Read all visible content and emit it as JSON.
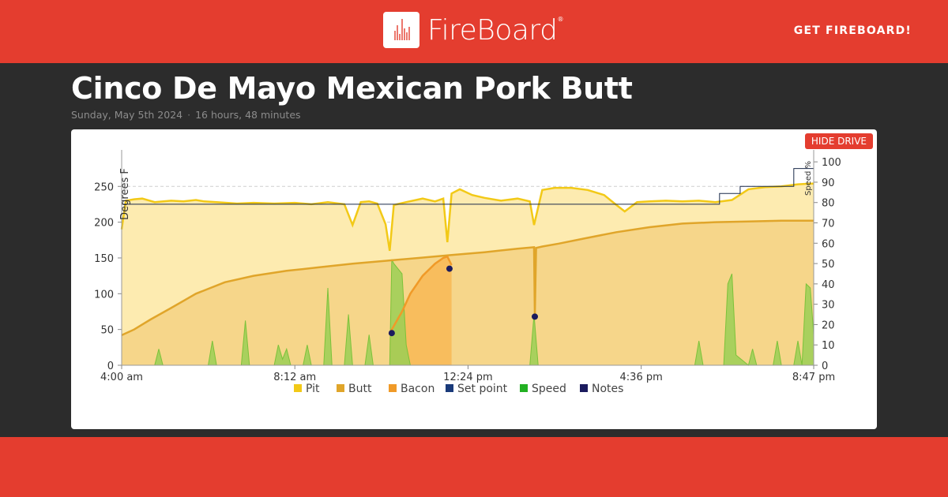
{
  "header": {
    "brand": "FireBoard",
    "reg_mark": "®",
    "cta_label": "GET FIREBOARD!"
  },
  "cook": {
    "title": "Cinco De Mayo Mexican Pork Butt",
    "date": "Sunday, May 5th 2024",
    "duration": "16 hours, 48 minutes"
  },
  "controls": {
    "hide_drive_label": "HIDE DRIVE"
  },
  "colors": {
    "brand_red": "#e43d2f",
    "pit": "#f2c917",
    "butt": "#e0a52a",
    "bacon": "#f09a28",
    "setpoint": "#1a3a7a",
    "speed": "#22b022",
    "notes": "#1b1b5e"
  },
  "chart_data": {
    "type": "line",
    "ylabel": "Degrees F",
    "y2label": "Speed %",
    "ylim": [
      0,
      290
    ],
    "y2lim": [
      0,
      102
    ],
    "y_ticks": [
      0,
      50,
      100,
      150,
      200,
      250
    ],
    "y2_ticks": [
      0,
      10,
      20,
      30,
      40,
      50,
      60,
      70,
      80,
      90,
      100
    ],
    "x_range_hours": [
      4.0,
      20.783
    ],
    "x_tick_labels": [
      {
        "h": 4.0,
        "label": "4:00 am"
      },
      {
        "h": 8.2,
        "label": "8:12 am"
      },
      {
        "h": 12.4,
        "label": "12:24 pm"
      },
      {
        "h": 16.6,
        "label": "4:36 pm"
      },
      {
        "h": 20.783,
        "label": "8:47 pm"
      }
    ],
    "grid": true,
    "legend": [
      {
        "name": "Pit",
        "color_key": "pit"
      },
      {
        "name": "Butt",
        "color_key": "butt"
      },
      {
        "name": "Bacon",
        "color_key": "bacon"
      },
      {
        "name": "Set point",
        "color_key": "setpoint"
      },
      {
        "name": "Speed",
        "color_key": "speed"
      },
      {
        "name": "Notes",
        "color_key": "notes"
      }
    ],
    "series": [
      {
        "name": "Pit",
        "axis": "left",
        "x": [
          4.0,
          4.1,
          4.3,
          4.5,
          4.8,
          5.2,
          5.5,
          5.8,
          6.0,
          6.3,
          6.8,
          7.2,
          7.7,
          8.2,
          8.6,
          9.0,
          9.4,
          9.6,
          9.8,
          10.0,
          10.2,
          10.4,
          10.5,
          10.6,
          10.9,
          11.3,
          11.6,
          11.8,
          11.9,
          12.0,
          12.2,
          12.5,
          12.8,
          13.2,
          13.6,
          13.9,
          14.0,
          14.2,
          14.5,
          14.9,
          15.3,
          15.7,
          16.0,
          16.2,
          16.5,
          16.8,
          17.2,
          17.6,
          18.0,
          18.4,
          18.8,
          19.2,
          19.6,
          20.0,
          20.4,
          20.783
        ],
        "y": [
          190,
          230,
          232,
          233,
          228,
          230,
          229,
          231,
          229,
          228,
          226,
          227,
          226,
          227,
          225,
          228,
          225,
          196,
          228,
          229,
          226,
          197,
          160,
          224,
          228,
          233,
          229,
          233,
          172,
          240,
          246,
          238,
          234,
          230,
          233,
          229,
          196,
          245,
          248,
          248,
          245,
          238,
          224,
          215,
          228,
          229,
          230,
          229,
          230,
          228,
          231,
          246,
          249,
          250,
          253,
          254
        ]
      },
      {
        "name": "Butt",
        "axis": "left",
        "x": [
          4.0,
          4.3,
          4.7,
          5.2,
          5.8,
          6.5,
          7.2,
          8.0,
          8.8,
          9.6,
          10.4,
          11.2,
          12.0,
          12.8,
          13.6,
          14.0,
          14.02,
          14.05,
          14.2,
          14.6,
          15.2,
          16.0,
          16.8,
          17.6,
          18.4,
          19.2,
          20.0,
          20.783
        ],
        "y": [
          42,
          50,
          64,
          80,
          100,
          116,
          125,
          132,
          137,
          142,
          146,
          150,
          154,
          158,
          163,
          165,
          70,
          164,
          166,
          170,
          177,
          186,
          193,
          198,
          200,
          201,
          202,
          202
        ]
      },
      {
        "name": "Bacon",
        "axis": "left",
        "x": [
          10.5,
          10.8,
          11.0,
          11.3,
          11.6,
          11.8,
          11.9,
          12.0
        ],
        "y": [
          45,
          75,
          100,
          125,
          142,
          150,
          152,
          140
        ]
      },
      {
        "name": "Set point",
        "axis": "left",
        "x": [
          4.0,
          18.5,
          18.5,
          19.0,
          19.0,
          20.3,
          20.3,
          20.783
        ],
        "y": [
          225,
          225,
          240,
          240,
          250,
          250,
          275,
          275
        ]
      },
      {
        "name": "Speed",
        "axis": "right",
        "x": [
          4.0,
          4.8,
          4.9,
          5.0,
          5.1,
          6.1,
          6.2,
          6.3,
          6.9,
          7.0,
          7.1,
          7.7,
          7.8,
          7.9,
          8.0,
          8.1,
          8.4,
          8.5,
          8.6,
          8.9,
          9.0,
          9.1,
          9.4,
          9.5,
          9.6,
          9.9,
          10.0,
          10.1,
          10.2,
          10.5,
          10.55,
          10.6,
          10.8,
          10.9,
          11.0,
          12.0,
          12.1,
          12.3,
          13.9,
          14.0,
          14.1,
          15.8,
          15.9,
          16.0,
          16.05,
          16.3,
          16.4,
          17.9,
          18.0,
          18.1,
          18.6,
          18.7,
          18.8,
          18.9,
          19.2,
          19.3,
          19.4,
          19.8,
          19.9,
          20.0,
          20.3,
          20.4,
          20.5,
          20.6,
          20.7,
          20.783
        ],
        "y": [
          0,
          0,
          8,
          0,
          0,
          0,
          12,
          0,
          0,
          22,
          0,
          0,
          10,
          3,
          8,
          0,
          0,
          10,
          0,
          0,
          38,
          0,
          0,
          25,
          0,
          0,
          15,
          0,
          0,
          0,
          52,
          50,
          45,
          10,
          0,
          0,
          0,
          0,
          0,
          25,
          0,
          0,
          0,
          0,
          0,
          0,
          0,
          0,
          12,
          0,
          0,
          40,
          45,
          5,
          0,
          8,
          0,
          0,
          12,
          0,
          0,
          12,
          0,
          40,
          38,
          15
        ]
      }
    ],
    "notes_points": [
      {
        "x": 10.55,
        "y": 45
      },
      {
        "x": 11.95,
        "y": 135
      },
      {
        "x": 14.02,
        "y": 68
      }
    ]
  }
}
